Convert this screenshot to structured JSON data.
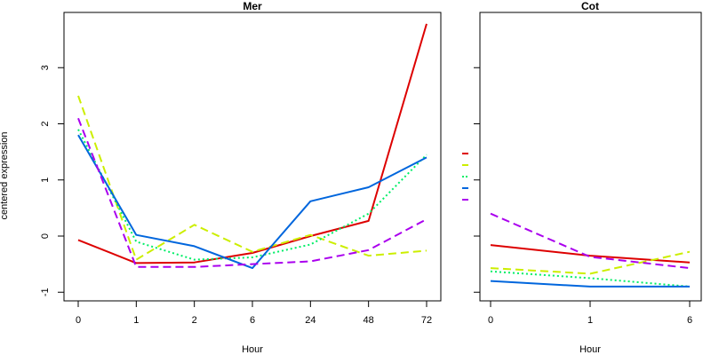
{
  "chart_data": [
    {
      "type": "line",
      "title": "Mer",
      "xlabel": "Hour",
      "ylabel": "centered expression",
      "x": [
        "0",
        "1",
        "2",
        "6",
        "24",
        "48",
        "72"
      ],
      "ylim": [
        -1.2,
        3.9
      ],
      "yticks": [
        "-1",
        "0",
        "1",
        "2",
        "3"
      ],
      "grid": false,
      "series": [
        {
          "color": "#dd0000",
          "dash": "solid",
          "values": [
            -0.07,
            -0.48,
            -0.47,
            -0.3,
            0.0,
            0.27,
            3.78
          ]
        },
        {
          "color": "#ccee00",
          "dash": "long-dash",
          "values": [
            2.5,
            -0.42,
            0.2,
            -0.28,
            0.02,
            -0.35,
            -0.26
          ]
        },
        {
          "color": "#00ee66",
          "dash": "dotted",
          "values": [
            1.9,
            -0.1,
            -0.42,
            -0.38,
            -0.15,
            0.4,
            1.45
          ]
        },
        {
          "color": "#0066dd",
          "dash": "solid",
          "values": [
            1.8,
            0.02,
            -0.18,
            -0.57,
            0.62,
            0.87,
            1.4
          ]
        },
        {
          "color": "#aa00ee",
          "dash": "long-dash",
          "values": [
            2.1,
            -0.55,
            -0.55,
            -0.5,
            -0.45,
            -0.25,
            0.3
          ]
        }
      ]
    },
    {
      "type": "line",
      "title": "Cot",
      "xlabel": "Hour",
      "ylabel": "",
      "x": [
        "0",
        "1",
        "6"
      ],
      "ylim": [
        -1.2,
        3.9
      ],
      "grid": false,
      "series": [
        {
          "color": "#dd0000",
          "dash": "solid",
          "values": [
            -0.16,
            -0.35,
            -0.47
          ]
        },
        {
          "color": "#ccee00",
          "dash": "long-dash",
          "values": [
            -0.57,
            -0.67,
            -0.28
          ]
        },
        {
          "color": "#00ee66",
          "dash": "dotted",
          "values": [
            -0.63,
            -0.75,
            -0.9
          ]
        },
        {
          "color": "#0066dd",
          "dash": "solid",
          "values": [
            -0.8,
            -0.9,
            -0.9
          ]
        },
        {
          "color": "#aa00ee",
          "dash": "long-dash",
          "values": [
            0.4,
            -0.37,
            -0.57
          ]
        }
      ]
    }
  ],
  "legend": {
    "placement": "between-panels",
    "entries": [
      {
        "color": "#dd0000",
        "dash": "solid"
      },
      {
        "color": "#ccee00",
        "dash": "long-dash"
      },
      {
        "color": "#00ee66",
        "dash": "dotted"
      },
      {
        "color": "#0066dd",
        "dash": "solid"
      },
      {
        "color": "#aa00ee",
        "dash": "long-dash"
      }
    ]
  }
}
